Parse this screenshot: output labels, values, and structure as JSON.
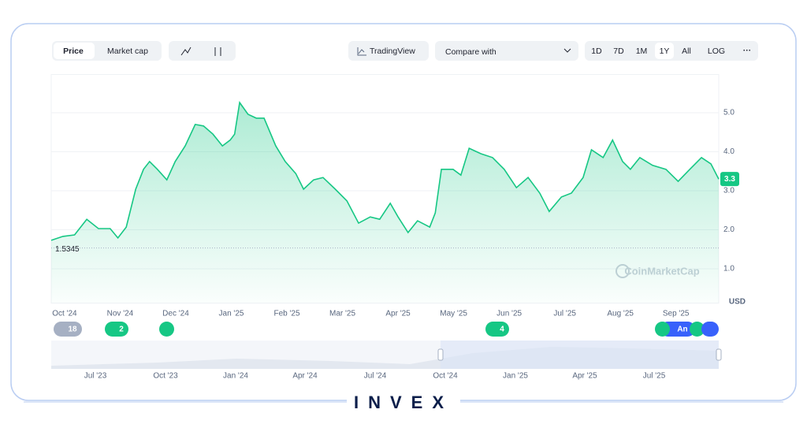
{
  "toolbar": {
    "tabs": [
      "Price",
      "Market cap"
    ],
    "tradingview": "TradingView",
    "compare": "Compare with",
    "ranges": [
      "1D",
      "7D",
      "1M",
      "1Y",
      "All",
      "LOG"
    ]
  },
  "chart_data": {
    "type": "line",
    "watermark": "CoinMarketCap",
    "unit": "USD",
    "x": [
      -0.24,
      -0.03,
      0.18,
      0.4,
      0.61,
      0.82,
      0.96,
      1.11,
      1.28,
      1.42,
      1.53,
      1.67,
      1.84,
      1.99,
      2.17,
      2.35,
      2.5,
      2.67,
      2.84,
      2.98,
      3.06,
      3.15,
      3.3,
      3.45,
      3.59,
      3.8,
      3.97,
      4.16,
      4.3,
      4.48,
      4.65,
      4.87,
      5.08,
      5.29,
      5.5,
      5.67,
      5.86,
      6.0,
      6.18,
      6.35,
      6.57,
      6.67,
      6.78,
      6.99,
      7.13,
      7.28,
      7.49,
      7.7,
      7.91,
      8.13,
      8.34,
      8.55,
      8.72,
      8.94,
      9.12,
      9.33,
      9.48,
      9.69,
      9.86,
      10.04,
      10.18,
      10.35,
      10.58,
      10.82,
      11.04,
      11.25,
      11.46,
      11.63,
      11.77
    ],
    "series": [
      {
        "color": "#16c784",
        "values": [
          1.73,
          1.83,
          1.87,
          2.27,
          2.03,
          2.03,
          1.79,
          2.07,
          3.04,
          3.55,
          3.75,
          3.55,
          3.28,
          3.75,
          4.15,
          4.7,
          4.66,
          4.45,
          4.15,
          4.3,
          4.45,
          5.26,
          4.96,
          4.86,
          4.86,
          4.15,
          3.75,
          3.44,
          3.04,
          3.28,
          3.34,
          3.04,
          2.74,
          2.17,
          2.33,
          2.27,
          2.68,
          2.33,
          1.93,
          2.23,
          2.07,
          2.43,
          3.55,
          3.55,
          3.4,
          4.09,
          3.95,
          3.85,
          3.55,
          3.08,
          3.34,
          2.94,
          2.47,
          2.84,
          2.94,
          3.34,
          4.05,
          3.85,
          4.3,
          3.75,
          3.55,
          3.85,
          3.65,
          3.55,
          3.24,
          3.55,
          3.85,
          3.69,
          3.3
        ]
      }
    ],
    "baseline": 1.5345,
    "xlim": [
      -0.24,
      11.77
    ],
    "ylim": [
      0.12,
      5.98
    ],
    "xticks": [
      {
        "value": 0,
        "label": "Oct '24"
      },
      {
        "value": 1,
        "label": "Nov '24"
      },
      {
        "value": 2,
        "label": "Dec '24"
      },
      {
        "value": 3,
        "label": "Jan '25"
      },
      {
        "value": 4,
        "label": "Feb '25"
      },
      {
        "value": 5,
        "label": "Mar '25"
      },
      {
        "value": 6,
        "label": "Apr '25"
      },
      {
        "value": 7,
        "label": "May '25"
      },
      {
        "value": 8,
        "label": "Jun '25"
      },
      {
        "value": 9,
        "label": "Jul '25"
      },
      {
        "value": 10,
        "label": "Aug '25"
      },
      {
        "value": 11,
        "label": "Sep '25"
      }
    ],
    "yticks": [
      {
        "value": 1,
        "label": "1.0"
      },
      {
        "value": 2,
        "label": "2.0"
      },
      {
        "value": 3,
        "label": "3.0"
      },
      {
        "value": 4,
        "label": "4.0"
      },
      {
        "value": 5,
        "label": "5.0"
      }
    ],
    "grid": true
  },
  "events": [
    "18",
    "2",
    "4",
    "An"
  ],
  "navigator": [
    "Jul '23",
    "Oct '23",
    "Jan '24",
    "Apr '24",
    "Jul '24",
    "Oct '24",
    "Jan '25",
    "Apr '25",
    "Jul '25"
  ],
  "brand": "INVEX"
}
